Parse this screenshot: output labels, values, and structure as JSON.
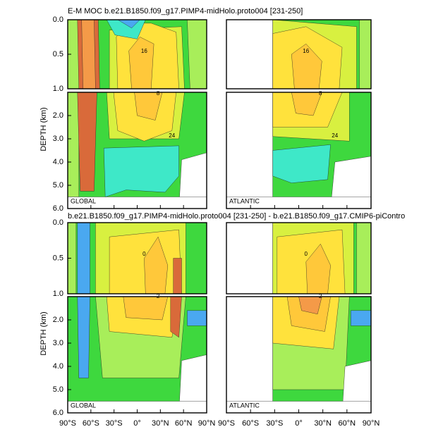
{
  "titles": [
    "E-M MOC  b.e21.B1850.f09_g17.PIMP4-midHolo.proto004 [231-250]",
    "b.e21.B1850.f09_g17.PIMP4-midHolo.proto004 [231-250] - b.e21.B1850.f09_g17.CMIP6-piContro"
  ],
  "ylabel": "DEPTH (km)",
  "panel_labels": [
    "GLOBAL",
    "ATLANTIC"
  ],
  "yticks_upper": [
    {
      "value": 0,
      "label": "0.0"
    },
    {
      "value": 0.5,
      "label": "0.5"
    },
    {
      "value": 1,
      "label": "1.0"
    }
  ],
  "yticks_lower": [
    {
      "value": 2,
      "label": "2.0"
    },
    {
      "value": 3,
      "label": "3.0"
    },
    {
      "value": 4,
      "label": "4.0"
    },
    {
      "value": 5,
      "label": "5.0"
    },
    {
      "value": 6,
      "label": "6.0"
    }
  ],
  "xticks": [
    {
      "value": -90,
      "label": "90°S"
    },
    {
      "value": -60,
      "label": "60°S"
    },
    {
      "value": -30,
      "label": "30°S"
    },
    {
      "value": 0,
      "label": "0°"
    },
    {
      "value": 30,
      "label": "30°N"
    },
    {
      "value": 60,
      "label": "60°N"
    },
    {
      "value": 90,
      "label": "90°N"
    }
  ],
  "contour_labels": [
    "16",
    "8",
    "24",
    "0",
    "2"
  ]
}
